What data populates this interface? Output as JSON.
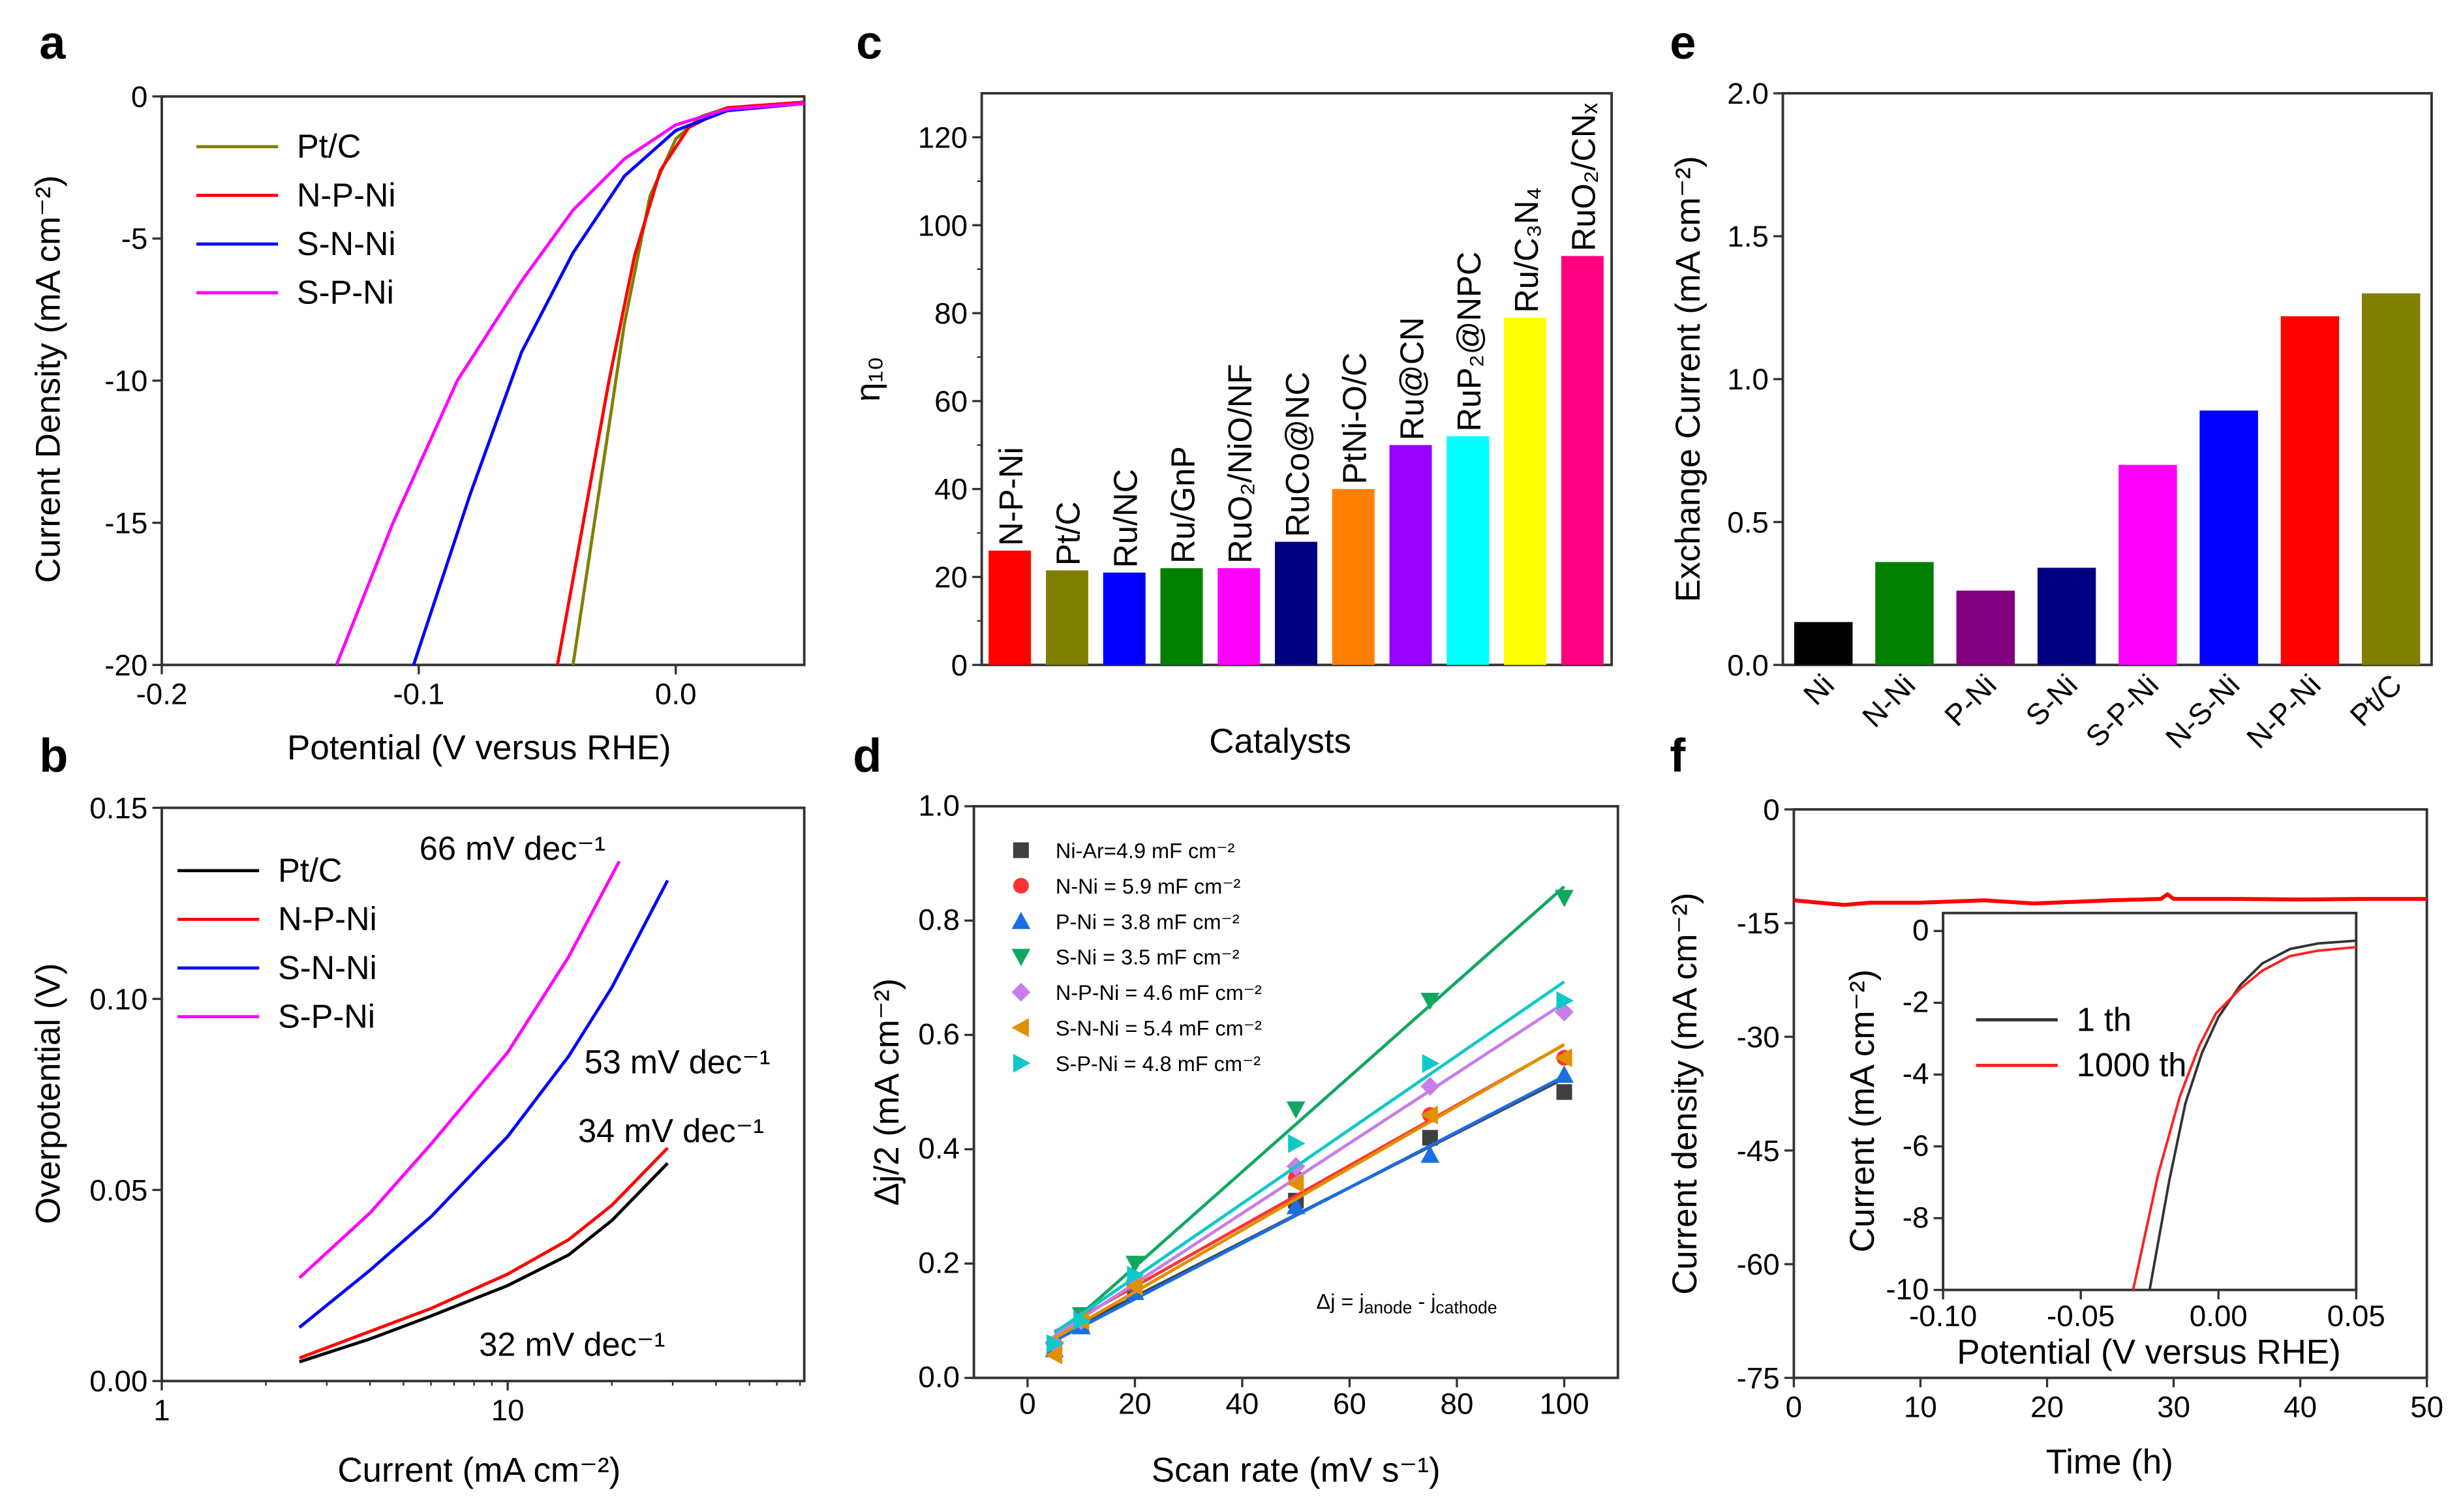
{
  "chart_data": [
    {
      "panel": "a",
      "type": "line",
      "xlabel": "Potential (V versus RHE)",
      "ylabel": "Current Density (mA cm⁻²)",
      "xlim": [
        -0.2,
        0.05
      ],
      "ylim": [
        -20,
        0
      ],
      "xticks": [
        -0.2,
        -0.1,
        0.0
      ],
      "xtick_labels": [
        "-0.2",
        "-0.1",
        "0.0"
      ],
      "yticks": [
        0,
        -5,
        -10,
        -15,
        -20
      ],
      "ytick_labels": [
        "0",
        "-5",
        "-10",
        "-15",
        "-20"
      ],
      "legend_position": "top-left",
      "series": [
        {
          "name": "Pt/C",
          "color": "#808000",
          "x": [
            -0.04,
            -0.03,
            -0.02,
            -0.01,
            0.0,
            0.01,
            0.02,
            0.05
          ],
          "y": [
            -20,
            -14,
            -8,
            -3.5,
            -1.5,
            -0.7,
            -0.4,
            -0.25
          ]
        },
        {
          "name": "N-P-Ni",
          "color": "#ff0000",
          "x": [
            -0.046,
            -0.036,
            -0.026,
            -0.016,
            -0.006,
            0.005,
            0.02,
            0.05
          ],
          "y": [
            -20,
            -15,
            -10,
            -5.6,
            -2.6,
            -1.1,
            -0.4,
            -0.2
          ]
        },
        {
          "name": "S-N-Ni",
          "color": "#0000ff",
          "x": [
            -0.102,
            -0.08,
            -0.06,
            -0.04,
            -0.02,
            0.0,
            0.02,
            0.05
          ],
          "y": [
            -20,
            -14,
            -9,
            -5.5,
            -2.8,
            -1.2,
            -0.5,
            -0.25
          ]
        },
        {
          "name": "S-P-Ni",
          "color": "#ff00ff",
          "x": [
            -0.132,
            -0.11,
            -0.085,
            -0.06,
            -0.04,
            -0.02,
            0.0,
            0.02,
            0.05
          ],
          "y": [
            -20,
            -15,
            -10,
            -6.5,
            -4,
            -2.2,
            -1,
            -0.45,
            -0.25
          ]
        }
      ]
    },
    {
      "panel": "b",
      "type": "line",
      "xscale": "log",
      "xlabel": "Current (mA cm⁻²)",
      "ylabel": "Overpotential (V)",
      "xlim": [
        1,
        72
      ],
      "ylim": [
        0,
        0.15
      ],
      "xticks": [
        1,
        10
      ],
      "xtick_labels": [
        "1",
        "10"
      ],
      "yticks": [
        0,
        0.05,
        0.1,
        0.15
      ],
      "ytick_labels": [
        "0.00",
        "0.05",
        "0.10",
        "0.15"
      ],
      "legend_position": "top-left",
      "series": [
        {
          "name": "Pt/C",
          "color": "#000000",
          "x": [
            2.5,
            4,
            6,
            10,
            15,
            20,
            29
          ],
          "y": [
            0.005,
            0.011,
            0.017,
            0.025,
            0.033,
            0.042,
            0.057
          ],
          "annotation": "32 mV dec⁻¹"
        },
        {
          "name": "N-P-Ni",
          "color": "#ff0000",
          "x": [
            2.5,
            4,
            6,
            10,
            15,
            20,
            29
          ],
          "y": [
            0.006,
            0.013,
            0.019,
            0.028,
            0.037,
            0.046,
            0.061
          ],
          "annotation": "34 mV dec⁻¹"
        },
        {
          "name": "S-N-Ni",
          "color": "#0000ff",
          "x": [
            2.5,
            4,
            6,
            10,
            15,
            20,
            29
          ],
          "y": [
            0.014,
            0.029,
            0.043,
            0.064,
            0.085,
            0.103,
            0.131
          ],
          "annotation": "53 mV dec⁻¹"
        },
        {
          "name": "S-P-Ni",
          "color": "#ff00ff",
          "x": [
            2.5,
            4,
            6,
            10,
            15,
            21
          ],
          "y": [
            0.027,
            0.044,
            0.062,
            0.086,
            0.111,
            0.136
          ],
          "annotation": "66 mV dec⁻¹"
        }
      ]
    },
    {
      "panel": "c",
      "type": "bar",
      "xlabel": "Catalysts",
      "ylabel": "η₁₀",
      "ylim": [
        0,
        130
      ],
      "yticks": [
        0,
        20,
        40,
        60,
        80,
        100,
        120
      ],
      "ytick_labels": [
        "0",
        "20",
        "40",
        "60",
        "80",
        "100",
        "120"
      ],
      "categories": [
        "N-P-Ni",
        "Pt/C",
        "Ru/NC",
        "Ru/GnP",
        "RuO₂/NiO/NF",
        "RuCo@NC",
        "PtNi-O/C",
        "Ru@CN",
        "RuP₂@NPC",
        "Ru/C₃N₄",
        "RuO₂/CNₓ"
      ],
      "values": [
        26,
        21.5,
        21,
        22,
        22,
        28,
        40,
        50,
        52,
        79,
        93
      ],
      "colors": [
        "#ff0000",
        "#808000",
        "#0000ff",
        "#008000",
        "#ff00ff",
        "#000080",
        "#ff8000",
        "#9900ff",
        "#00ffff",
        "#ffff00",
        "#ff0080"
      ]
    },
    {
      "panel": "d",
      "type": "scatter",
      "xlabel": "Scan rate (mV s⁻¹)",
      "ylabel": "Δj/2 (mA cm⁻²)",
      "xlim": [
        -10,
        110
      ],
      "ylim": [
        0,
        1.0
      ],
      "xticks": [
        0,
        20,
        40,
        60,
        80,
        100
      ],
      "xtick_labels": [
        "0",
        "20",
        "40",
        "60",
        "80",
        "100"
      ],
      "yticks": [
        0,
        0.2,
        0.4,
        0.6,
        0.8,
        1.0
      ],
      "ytick_labels": [
        "0.0",
        "0.2",
        "0.4",
        "0.6",
        "0.8",
        "1.0"
      ],
      "legend_position": "top-left",
      "annotation": {
        "lead": "Δj = j",
        "sub1": "anode",
        "mid": " - j",
        "sub2": "cathode"
      },
      "x": [
        5,
        10,
        20,
        50,
        75,
        100
      ],
      "series": [
        {
          "name": "Ni-Ar=4.9 mF cm⁻²",
          "marker": "square",
          "color": "#404040",
          "y": [
            0.05,
            0.09,
            0.15,
            0.31,
            0.42,
            0.5
          ]
        },
        {
          "name": "N-Ni = 5.9 mF cm⁻²",
          "marker": "circle",
          "color": "#ff3333",
          "y": [
            0.06,
            0.1,
            0.17,
            0.35,
            0.46,
            0.56
          ]
        },
        {
          "name": "P-Ni = 3.8 mF cm⁻²",
          "marker": "triangle-up",
          "color": "#1a6ee0",
          "y": [
            0.05,
            0.09,
            0.15,
            0.3,
            0.39,
            0.53
          ]
        },
        {
          "name": "S-Ni = 3.5 mF cm⁻²",
          "marker": "triangle-down",
          "color": "#10a860",
          "y": [
            0.05,
            0.11,
            0.2,
            0.47,
            0.66,
            0.84
          ]
        },
        {
          "name": "N-P-Ni = 4.6 mF cm⁻²",
          "marker": "diamond",
          "color": "#c77ee8",
          "y": [
            0.06,
            0.1,
            0.17,
            0.37,
            0.51,
            0.64
          ]
        },
        {
          "name": "S-N-Ni = 5.4 mF cm⁻²",
          "marker": "triangle-left",
          "color": "#e09000",
          "y": [
            0.04,
            0.1,
            0.16,
            0.34,
            0.46,
            0.56
          ]
        },
        {
          "name": "S-P-Ni = 4.8 mF cm⁻²",
          "marker": "triangle-right",
          "color": "#10c8c8",
          "y": [
            0.06,
            0.1,
            0.18,
            0.41,
            0.55,
            0.66
          ]
        }
      ]
    },
    {
      "panel": "e",
      "type": "bar",
      "ylabel": "Exchange Current (mA cm⁻²)",
      "ylim": [
        0,
        2.0
      ],
      "yticks": [
        0,
        0.5,
        1.0,
        1.5,
        2.0
      ],
      "ytick_labels": [
        "0.0",
        "0.5",
        "1.0",
        "1.5",
        "2.0"
      ],
      "categories": [
        "Ni",
        "N-Ni",
        "P-Ni",
        "S-Ni",
        "S-P-Ni",
        "N-S-Ni",
        "N-P-Ni",
        "Pt/C"
      ],
      "values": [
        0.15,
        0.36,
        0.26,
        0.34,
        0.7,
        0.89,
        1.22,
        1.3
      ],
      "colors": [
        "#000000",
        "#008000",
        "#800080",
        "#000080",
        "#ff00ff",
        "#0000ff",
        "#ff0000",
        "#808000"
      ]
    },
    {
      "panel": "f",
      "type": "line",
      "xlabel": "Time (h)",
      "ylabel": "Current density (mA cm⁻²)",
      "xlim": [
        0,
        50
      ],
      "ylim": [
        -75,
        0
      ],
      "xticks": [
        0,
        10,
        20,
        30,
        40,
        50
      ],
      "xtick_labels": [
        "0",
        "10",
        "20",
        "30",
        "40",
        "50"
      ],
      "yticks": [
        0,
        -15,
        -30,
        -45,
        -60,
        -75
      ],
      "ytick_labels": [
        "0",
        "-15",
        "-30",
        "-45",
        "-60",
        "-75"
      ],
      "series": [
        {
          "color": "#ff0000",
          "x": [
            0,
            2,
            4,
            6,
            10,
            15,
            19,
            25,
            29,
            29.5,
            30,
            35,
            40,
            45,
            50
          ],
          "y": [
            -12,
            -12.3,
            -12.6,
            -12.3,
            -12.3,
            -12,
            -12.4,
            -12,
            -11.8,
            -11.2,
            -11.8,
            -11.8,
            -11.9,
            -11.8,
            -11.8
          ]
        }
      ],
      "inset": {
        "type": "line",
        "xlabel": "Potential (V versus RHE)",
        "ylabel": "Current (mA cm⁻²)",
        "xlim": [
          -0.1,
          0.05
        ],
        "ylim": [
          -10,
          0.5
        ],
        "xticks": [
          -0.1,
          -0.05,
          0,
          0.05
        ],
        "xtick_labels": [
          "-0.10",
          "-0.05",
          "0.00",
          "0.05"
        ],
        "yticks": [
          0,
          -2,
          -4,
          -6,
          -8,
          -10
        ],
        "ytick_labels": [
          "0",
          "-2",
          "-4",
          "-6",
          "-8",
          "-10"
        ],
        "legend_position": "middle-left",
        "series": [
          {
            "name": "1 th",
            "color": "#333333",
            "x": [
              -0.025,
              -0.018,
              -0.012,
              -0.006,
              0.0,
              0.008,
              0.016,
              0.026,
              0.036,
              0.05
            ],
            "y": [
              -10,
              -7,
              -4.8,
              -3.4,
              -2.4,
              -1.5,
              -0.9,
              -0.5,
              -0.35,
              -0.27
            ]
          },
          {
            "name": "1000 th",
            "color": "#ff2020",
            "x": [
              -0.031,
              -0.022,
              -0.014,
              -0.007,
              -0.001,
              0.008,
              0.016,
              0.026,
              0.036,
              0.05
            ],
            "y": [
              -10,
              -6.8,
              -4.6,
              -3.2,
              -2.3,
              -1.6,
              -1.1,
              -0.7,
              -0.55,
              -0.45
            ]
          }
        ]
      }
    }
  ],
  "panel_letters": [
    "a",
    "b",
    "c",
    "d",
    "e",
    "f"
  ]
}
